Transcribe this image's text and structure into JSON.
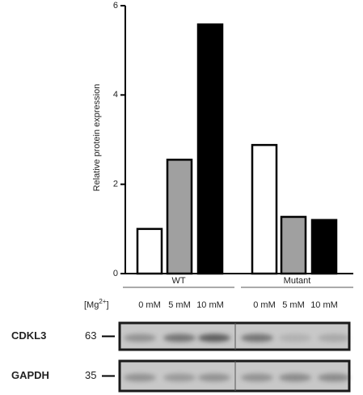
{
  "chart_data": {
    "type": "bar",
    "y_label": "Relative protein expression",
    "groups": [
      "WT",
      "Mutant"
    ],
    "series": [
      {
        "name": "0 mM",
        "color": "#ffffff",
        "values": [
          1.0,
          2.88
        ]
      },
      {
        "name": "5 mM",
        "color": "#a0a0a0",
        "values": [
          2.55,
          1.27
        ]
      },
      {
        "name": "10 mM",
        "color": "#000000",
        "values": [
          5.58,
          1.2
        ]
      }
    ],
    "concentration_label": {
      "base": "[Mg",
      "superscript": "2+",
      "end": "]"
    },
    "ylim": [
      0,
      6
    ],
    "yticks": [
      0,
      2,
      4,
      6
    ]
  },
  "blots": [
    {
      "label": "CDKL3",
      "marker": "63"
    },
    {
      "label": "GAPDH",
      "marker": "35"
    }
  ]
}
